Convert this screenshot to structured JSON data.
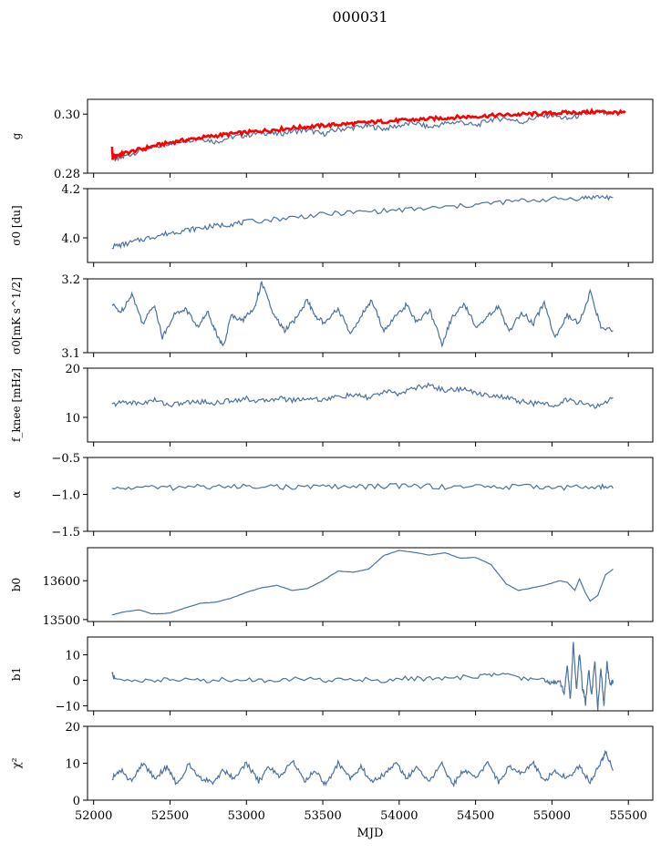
{
  "figure": {
    "title": "000031"
  },
  "chart_data": [
    {
      "id": "g",
      "type": "line",
      "ylabel": "g",
      "ylim": [
        0.28,
        0.305
      ],
      "yticks": [
        0.28,
        0.3
      ],
      "ytick_labels": [
        "0.28",
        "0.30"
      ],
      "xlim": [
        51960,
        55660
      ],
      "series": [
        {
          "color": "#4c72a0",
          "x": [
            52120,
            52150,
            52200,
            52300,
            52400,
            52500,
            52600,
            52700,
            52800,
            52900,
            53000,
            53100,
            53200,
            53300,
            53400,
            53500,
            53600,
            53700,
            53800,
            53900,
            54000,
            54100,
            54200,
            54300,
            54400,
            54500,
            54600,
            54700,
            54800,
            54900,
            55000,
            55100,
            55200,
            55300,
            55400
          ],
          "y": [
            0.2855,
            0.2846,
            0.2856,
            0.2875,
            0.2887,
            0.2902,
            0.2911,
            0.2918,
            0.2906,
            0.2922,
            0.2928,
            0.2938,
            0.2932,
            0.2941,
            0.2946,
            0.2932,
            0.2948,
            0.2954,
            0.296,
            0.295,
            0.2961,
            0.297,
            0.2955,
            0.2968,
            0.2974,
            0.296,
            0.2982,
            0.2986,
            0.2972,
            0.299,
            0.2997,
            0.2983,
            0.2999,
            0.3007,
            0.2997
          ]
        },
        {
          "color": "#ff0000",
          "x": [
            52120,
            52125,
            52130,
            52150,
            52200,
            52300,
            52400,
            52500,
            52600,
            52700,
            52800,
            52900,
            53000,
            53100,
            53200,
            53300,
            53400,
            53500,
            53600,
            53700,
            53800,
            53900,
            54000,
            54100,
            54200,
            54300,
            54400,
            54500,
            54600,
            54700,
            54800,
            54900,
            55000,
            55100,
            55200,
            55300,
            55400,
            55480
          ],
          "y": [
            0.289,
            0.2851,
            0.2858,
            0.286,
            0.2867,
            0.288,
            0.2893,
            0.2903,
            0.2912,
            0.292,
            0.2927,
            0.2933,
            0.2938,
            0.2943,
            0.2948,
            0.2953,
            0.2957,
            0.2961,
            0.2965,
            0.2968,
            0.2972,
            0.2975,
            0.2978,
            0.2981,
            0.2984,
            0.2987,
            0.299,
            0.2992,
            0.2995,
            0.2997,
            0.2999,
            0.3001,
            0.3003,
            0.3005,
            0.3006,
            0.3008,
            0.3006,
            0.3004
          ]
        }
      ]
    },
    {
      "id": "sigma0_du",
      "type": "line",
      "ylabel": "σ0 [du]",
      "ylim": [
        3.9,
        4.2
      ],
      "yticks": [
        4.0,
        4.2
      ],
      "ytick_labels": [
        "4.0",
        "4.2"
      ],
      "xlim": [
        51960,
        55660
      ],
      "series": [
        {
          "color": "#4c72a0",
          "x": [
            52120,
            52200,
            52300,
            52400,
            52500,
            52600,
            52700,
            52800,
            52900,
            53000,
            53200,
            53400,
            53600,
            53800,
            54000,
            54200,
            54400,
            54600,
            54800,
            55000,
            55200,
            55300,
            55400
          ],
          "y": [
            3.965,
            3.973,
            3.991,
            4.006,
            4.02,
            4.031,
            4.04,
            4.049,
            4.056,
            4.064,
            4.077,
            4.089,
            4.1,
            4.107,
            4.113,
            4.12,
            4.129,
            4.141,
            4.151,
            4.157,
            4.162,
            4.167,
            4.164
          ]
        }
      ]
    },
    {
      "id": "sigma0_mk",
      "type": "line",
      "ylabel": "σ0[mK s^1/2]",
      "ylim": [
        3.1,
        3.2
      ],
      "yticks": [
        3.1,
        3.2
      ],
      "ytick_labels": [
        "3.1",
        "3.2"
      ],
      "xlim": [
        51960,
        55660
      ],
      "series": [
        {
          "color": "#4c72a0",
          "x": [
            52120,
            52180,
            52250,
            52320,
            52400,
            52450,
            52520,
            52600,
            52680,
            52750,
            52800,
            52850,
            52900,
            52980,
            53050,
            53100,
            53180,
            53250,
            53320,
            53400,
            53450,
            53520,
            53600,
            53680,
            53750,
            53820,
            53900,
            53980,
            54050,
            54120,
            54200,
            54280,
            54350,
            54430,
            54500,
            54580,
            54650,
            54720,
            54800,
            54880,
            54950,
            55020,
            55100,
            55180,
            55250,
            55320,
            55400
          ],
          "y": [
            3.165,
            3.155,
            3.18,
            3.14,
            3.165,
            3.12,
            3.15,
            3.16,
            3.135,
            3.155,
            3.128,
            3.108,
            3.15,
            3.145,
            3.16,
            3.195,
            3.15,
            3.13,
            3.145,
            3.172,
            3.148,
            3.14,
            3.16,
            3.125,
            3.15,
            3.17,
            3.13,
            3.15,
            3.165,
            3.14,
            3.158,
            3.112,
            3.15,
            3.165,
            3.135,
            3.15,
            3.162,
            3.128,
            3.155,
            3.14,
            3.168,
            3.12,
            3.15,
            3.14,
            3.182,
            3.135,
            3.13
          ]
        }
      ]
    },
    {
      "id": "fknee",
      "type": "line",
      "ylabel": "f_knee [mHz]",
      "ylim": [
        5,
        20
      ],
      "yticks": [
        10,
        20
      ],
      "ytick_labels": [
        "10",
        "20"
      ],
      "xlim": [
        51960,
        55660
      ],
      "series": [
        {
          "color": "#4c72a0",
          "x": [
            52120,
            52200,
            52300,
            52400,
            52500,
            52600,
            52700,
            52800,
            52900,
            53000,
            53100,
            53200,
            53300,
            53400,
            53500,
            53600,
            53700,
            53800,
            53900,
            54000,
            54100,
            54200,
            54300,
            54400,
            54500,
            54600,
            54700,
            54800,
            54900,
            55000,
            55100,
            55200,
            55300,
            55400
          ],
          "y": [
            12.5,
            13.2,
            12.8,
            13.5,
            12.5,
            13.0,
            13.2,
            12.9,
            13.5,
            13.8,
            13.2,
            14.0,
            13.5,
            13.9,
            13.6,
            14.2,
            14.5,
            14.0,
            15.2,
            14.8,
            16.0,
            16.5,
            15.5,
            15.8,
            15.0,
            14.5,
            14.0,
            13.2,
            12.8,
            12.5,
            13.5,
            12.8,
            12.2,
            14.0
          ]
        }
      ]
    },
    {
      "id": "alpha",
      "type": "line",
      "ylabel": "α",
      "ylim": [
        -1.5,
        -0.5
      ],
      "yticks": [
        -1.5,
        -1.0,
        -0.5
      ],
      "ytick_labels": [
        "−1.5",
        "−1.0",
        "−0.5"
      ],
      "xlim": [
        51960,
        55660
      ],
      "series": [
        {
          "color": "#4c72a0",
          "x": [
            52120,
            52300,
            52500,
            52700,
            52900,
            53100,
            53300,
            53500,
            53700,
            53900,
            54100,
            54300,
            54500,
            54700,
            54900,
            55100,
            55300,
            55400
          ],
          "y": [
            -0.93,
            -0.9,
            -0.91,
            -0.89,
            -0.9,
            -0.88,
            -0.91,
            -0.89,
            -0.9,
            -0.89,
            -0.88,
            -0.9,
            -0.89,
            -0.9,
            -0.89,
            -0.91,
            -0.89,
            -0.92
          ]
        }
      ]
    },
    {
      "id": "b0",
      "type": "line",
      "ylabel": "b0",
      "ylim": [
        13495,
        13685
      ],
      "yticks": [
        13500,
        13600
      ],
      "ytick_labels": [
        "13500",
        "13600"
      ],
      "xlim": [
        51960,
        55660
      ],
      "series": [
        {
          "color": "#4c72a0",
          "x": [
            52120,
            52200,
            52300,
            52380,
            52450,
            52500,
            52600,
            52700,
            52800,
            52900,
            53000,
            53100,
            53200,
            53300,
            53400,
            53500,
            53600,
            53700,
            53800,
            53900,
            54000,
            54100,
            54200,
            54300,
            54400,
            54500,
            54600,
            54700,
            54780,
            54850,
            54950,
            55050,
            55100,
            55150,
            55180,
            55220,
            55250,
            55300,
            55350,
            55400
          ],
          "y": [
            13512,
            13520,
            13525,
            13515,
            13515,
            13517,
            13530,
            13542,
            13545,
            13555,
            13570,
            13582,
            13588,
            13575,
            13580,
            13600,
            13625,
            13622,
            13630,
            13665,
            13678,
            13673,
            13666,
            13672,
            13658,
            13660,
            13642,
            13592,
            13575,
            13580,
            13588,
            13600,
            13596,
            13575,
            13605,
            13568,
            13548,
            13562,
            13615,
            13630
          ]
        }
      ]
    },
    {
      "id": "b1",
      "type": "line",
      "ylabel": "b1",
      "ylim": [
        -12,
        17
      ],
      "yticks": [
        -10,
        0,
        10
      ],
      "ytick_labels": [
        "−10",
        "0",
        "10"
      ],
      "xlim": [
        51960,
        55660
      ],
      "series": [
        {
          "color": "#4c72a0",
          "x": [
            52120,
            52140,
            52300,
            52500,
            52700,
            52900,
            53100,
            53300,
            53500,
            53700,
            53900,
            54100,
            54300,
            54500,
            54650,
            54800,
            54950,
            55000,
            55050,
            55080,
            55100,
            55120,
            55140,
            55160,
            55180,
            55200,
            55220,
            55240,
            55260,
            55280,
            55300,
            55320,
            55340,
            55360,
            55380,
            55400
          ],
          "y": [
            3,
            0.2,
            0,
            0.2,
            0,
            0.3,
            0,
            0.5,
            0,
            0.5,
            0,
            0.8,
            0.5,
            1.5,
            2.5,
            1,
            0,
            -1,
            0,
            -5,
            6,
            -8,
            15,
            -4,
            11,
            -3,
            -9,
            4,
            -6,
            8,
            -11,
            5,
            -10,
            7,
            -2,
            0
          ]
        }
      ]
    },
    {
      "id": "chi2",
      "type": "line",
      "ylabel": "χ²",
      "ylim": [
        0,
        20
      ],
      "yticks": [
        0,
        10,
        20
      ],
      "ytick_labels": [
        "0",
        "10",
        "20"
      ],
      "xlim": [
        51960,
        55660
      ],
      "xticks": [
        52000,
        52500,
        53000,
        53500,
        54000,
        54500,
        55000,
        55500
      ],
      "xtick_labels": [
        "52000",
        "52500",
        "53000",
        "53500",
        "54000",
        "54500",
        "55000",
        "55500"
      ],
      "xlabel": "MJD",
      "series": [
        {
          "color": "#4c72a0",
          "x": [
            52120,
            52180,
            52250,
            52320,
            52400,
            52480,
            52550,
            52620,
            52700,
            52780,
            52850,
            52920,
            53000,
            53080,
            53150,
            53220,
            53300,
            53380,
            53450,
            53520,
            53600,
            53680,
            53750,
            53820,
            53900,
            53980,
            54050,
            54120,
            54200,
            54280,
            54350,
            54420,
            54500,
            54580,
            54650,
            54720,
            54800,
            54880,
            54950,
            55020,
            55100,
            55180,
            55250,
            55320,
            55350,
            55400
          ],
          "y": [
            6,
            8,
            5,
            10,
            6,
            9,
            4,
            10,
            6,
            5,
            8,
            6,
            10,
            5,
            9,
            6,
            11,
            5,
            8,
            4,
            10,
            6,
            9,
            5,
            7,
            10,
            6,
            9,
            5,
            10,
            4,
            8,
            6,
            10,
            5,
            9,
            7,
            10,
            5,
            8,
            6,
            9,
            5,
            10,
            13,
            8
          ]
        }
      ]
    }
  ]
}
